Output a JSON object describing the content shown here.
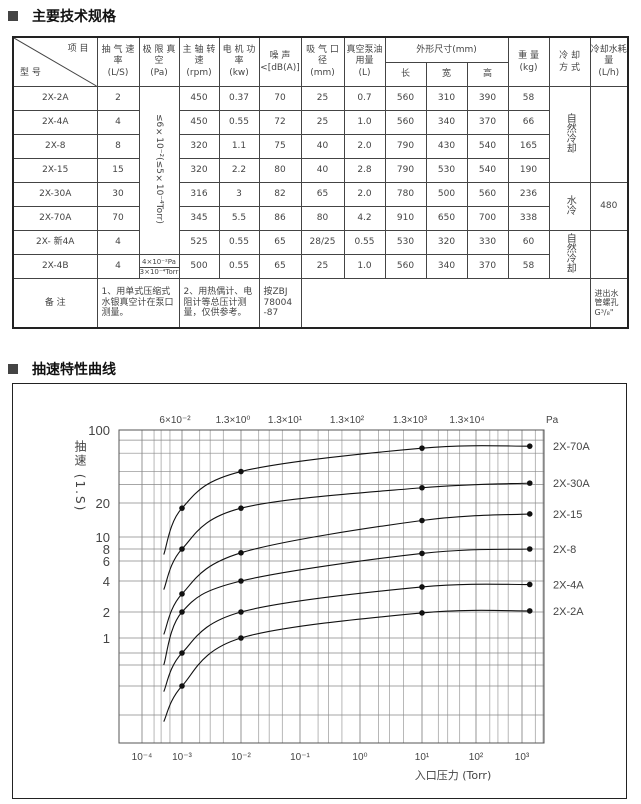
{
  "section1_title": "主要技术规格",
  "section2_title": "抽速特性曲线",
  "table": {
    "corner_top": "项 目",
    "corner_bottom": "型 号",
    "headers": [
      {
        "label": "抽 气 速 率",
        "unit": "(L/S)"
      },
      {
        "label": "极 限 真 空",
        "unit": "(Pa)"
      },
      {
        "label": "主 轴 转 速",
        "unit": "(rpm)"
      },
      {
        "label": "电 机 功 率",
        "unit": "(kw)"
      },
      {
        "label": "噪 声",
        "unit": "<[dB(A)]"
      },
      {
        "label": "吸 气 口 径",
        "unit": "(mm)"
      },
      {
        "label": "真空泵油用量",
        "unit": "(L)"
      }
    ],
    "dims_header": "外形尺寸(mm)",
    "dims_sub": [
      "长",
      "宽",
      "高"
    ],
    "weight_header": {
      "label": "重 量",
      "unit": "(kg)"
    },
    "cooling_header": {
      "label": "冷 却",
      "unit": "方 式"
    },
    "water_header": {
      "label": "冷却水耗量",
      "unit": "(L/h)"
    },
    "rows": [
      [
        "2X-2A",
        "2",
        "450",
        "0.37",
        "70",
        "25",
        "0.7",
        "560",
        "310",
        "390",
        "58"
      ],
      [
        "2X-4A",
        "4",
        "450",
        "0.55",
        "72",
        "25",
        "1.0",
        "560",
        "340",
        "370",
        "66"
      ],
      [
        "2X-8",
        "8",
        "320",
        "1.1",
        "75",
        "40",
        "2.0",
        "790",
        "430",
        "540",
        "165"
      ],
      [
        "2X-15",
        "15",
        "320",
        "2.2",
        "80",
        "40",
        "2.8",
        "790",
        "530",
        "540",
        "190"
      ],
      [
        "2X-30A",
        "30",
        "316",
        "3",
        "82",
        "65",
        "2.0",
        "780",
        "500",
        "560",
        "236"
      ],
      [
        "2X-70A",
        "70",
        "345",
        "5.5",
        "86",
        "80",
        "4.2",
        "910",
        "650",
        "700",
        "338"
      ],
      [
        "2X- 新4A",
        "4",
        "525",
        "0.55",
        "65",
        "28/25",
        "0.55",
        "530",
        "320",
        "330",
        "60"
      ],
      [
        "2X-4B",
        "4",
        "500",
        "0.55",
        "65",
        "25",
        "1.0",
        "560",
        "340",
        "370",
        "58"
      ]
    ],
    "ultimate_vacuum_merged": "≤6×10⁻²(≤5×10⁻⁴Torr)",
    "ultimate_vacuum_4b": [
      "4×10⁻²Pa",
      "3×10⁻⁴Torr"
    ],
    "cooling": [
      "自然冷却",
      "水冷",
      "自然冷却"
    ],
    "water": [
      "",
      "480",
      ""
    ],
    "notes_label": "备 注",
    "notes": [
      "1、用单式压缩式水银真空计在泵口测量。",
      "2、用热偶计、电阻计等总压计测量，仅供参考。",
      "按ZBJ 78004 -87",
      "进出水管螺孔G³/₈\""
    ]
  },
  "chart_data": {
    "type": "line",
    "title": "",
    "xlabel": "入口压力 (Torr)",
    "ylabel": "抽速 (1.S)",
    "x_scale": "log",
    "y_scale": "log",
    "xlim": [
      0.0001,
      2000
    ],
    "ylim": [
      0.1,
      100
    ],
    "x_ticks": [
      {
        "value": 0.0001,
        "label": "10⁻⁴"
      },
      {
        "value": 0.001,
        "label": "10⁻³"
      },
      {
        "value": 0.01,
        "label": "10⁻²"
      },
      {
        "value": 0.1,
        "label": "10⁻¹"
      },
      {
        "value": 1,
        "label": "10⁰"
      },
      {
        "value": 10,
        "label": "10¹"
      },
      {
        "value": 100,
        "label": "10²"
      },
      {
        "value": 1000,
        "label": "10³"
      }
    ],
    "y_ticks": [
      {
        "value": 100,
        "label": "100"
      },
      {
        "value": 20,
        "label": "20"
      },
      {
        "value": 10,
        "label": "10"
      },
      {
        "value": 8,
        "label": "8"
      },
      {
        "value": 6,
        "label": "6"
      },
      {
        "value": 4,
        "label": "4"
      },
      {
        "value": 2,
        "label": "2"
      },
      {
        "value": 1,
        "label": "1"
      }
    ],
    "top_axis_unit": "Pa",
    "top_axis_labels": [
      "6×10⁻²",
      "1.3×10⁰",
      "1.3×10¹",
      "1.3×10²",
      "1.3×10³",
      "1.3×10⁴"
    ],
    "grid": true,
    "series": [
      {
        "name": "2X-70A",
        "points": [
          [
            0.00035,
            7
          ],
          [
            0.001,
            18
          ],
          [
            0.01,
            40
          ],
          [
            10,
            67
          ],
          [
            1500,
            70
          ]
        ]
      },
      {
        "name": "2X-30A",
        "points": [
          [
            0.00035,
            3.3
          ],
          [
            0.001,
            8
          ],
          [
            0.01,
            18
          ],
          [
            10,
            28
          ],
          [
            1500,
            31
          ]
        ]
      },
      {
        "name": "2X-15",
        "points": [
          [
            0.00035,
            1.1
          ],
          [
            0.001,
            3
          ],
          [
            0.01,
            7.3
          ],
          [
            10,
            14
          ],
          [
            1500,
            16
          ]
        ]
      },
      {
        "name": "2X-8",
        "points": [
          [
            0.00035,
            0.6
          ],
          [
            0.001,
            2
          ],
          [
            0.01,
            4
          ],
          [
            10,
            7.2
          ],
          [
            1500,
            8
          ]
        ]
      },
      {
        "name": "2X-4A",
        "points": [
          [
            0.00035,
            0.35
          ],
          [
            0.001,
            0.8
          ],
          [
            0.01,
            2
          ],
          [
            10,
            3.5
          ],
          [
            1500,
            3.7
          ]
        ]
      },
      {
        "name": "2X-2A",
        "points": [
          [
            0.00035,
            0.17
          ],
          [
            0.001,
            0.4
          ],
          [
            0.01,
            1
          ],
          [
            10,
            1.95
          ],
          [
            1500,
            2.05
          ]
        ]
      }
    ],
    "legend_placement": "right, inline labels"
  }
}
